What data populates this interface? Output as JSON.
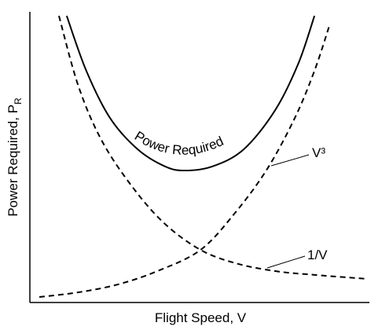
{
  "chart_data": {
    "type": "line",
    "xlabel": "Flight Speed, V",
    "ylabel": "Power Required, P",
    "ylabel_subscript": "R",
    "xlim": [
      0,
      10
    ],
    "ylim": [
      0,
      10
    ],
    "series": [
      {
        "name": "Power Required",
        "color": "#000000",
        "dashed": false,
        "x": [
          1.09,
          1.67,
          2.37,
          3.19,
          4.0,
          4.58,
          5.4,
          6.33,
          7.26,
          7.95,
          8.42
        ],
        "values": [
          9.86,
          7.97,
          6.35,
          5.27,
          4.68,
          4.54,
          4.68,
          5.27,
          6.62,
          8.24,
          9.86
        ]
      },
      {
        "name": "V³",
        "color": "#000000",
        "dashed": true,
        "x": [
          0.28,
          1.44,
          2.6,
          3.77,
          5.05,
          6.09,
          7.02,
          7.84,
          8.42,
          8.88
        ],
        "values": [
          0.19,
          0.35,
          0.62,
          1.08,
          1.81,
          3.11,
          4.59,
          6.35,
          7.97,
          9.59
        ]
      },
      {
        "name": "1/V",
        "color": "#000000",
        "dashed": true,
        "x": [
          0.86,
          1.44,
          2.14,
          3.07,
          4.0,
          5.05,
          6.09,
          7.26,
          8.42,
          10
        ],
        "values": [
          9.86,
          7.43,
          5.54,
          3.92,
          2.7,
          1.81,
          1.35,
          1.08,
          0.95,
          0.81
        ]
      }
    ]
  }
}
